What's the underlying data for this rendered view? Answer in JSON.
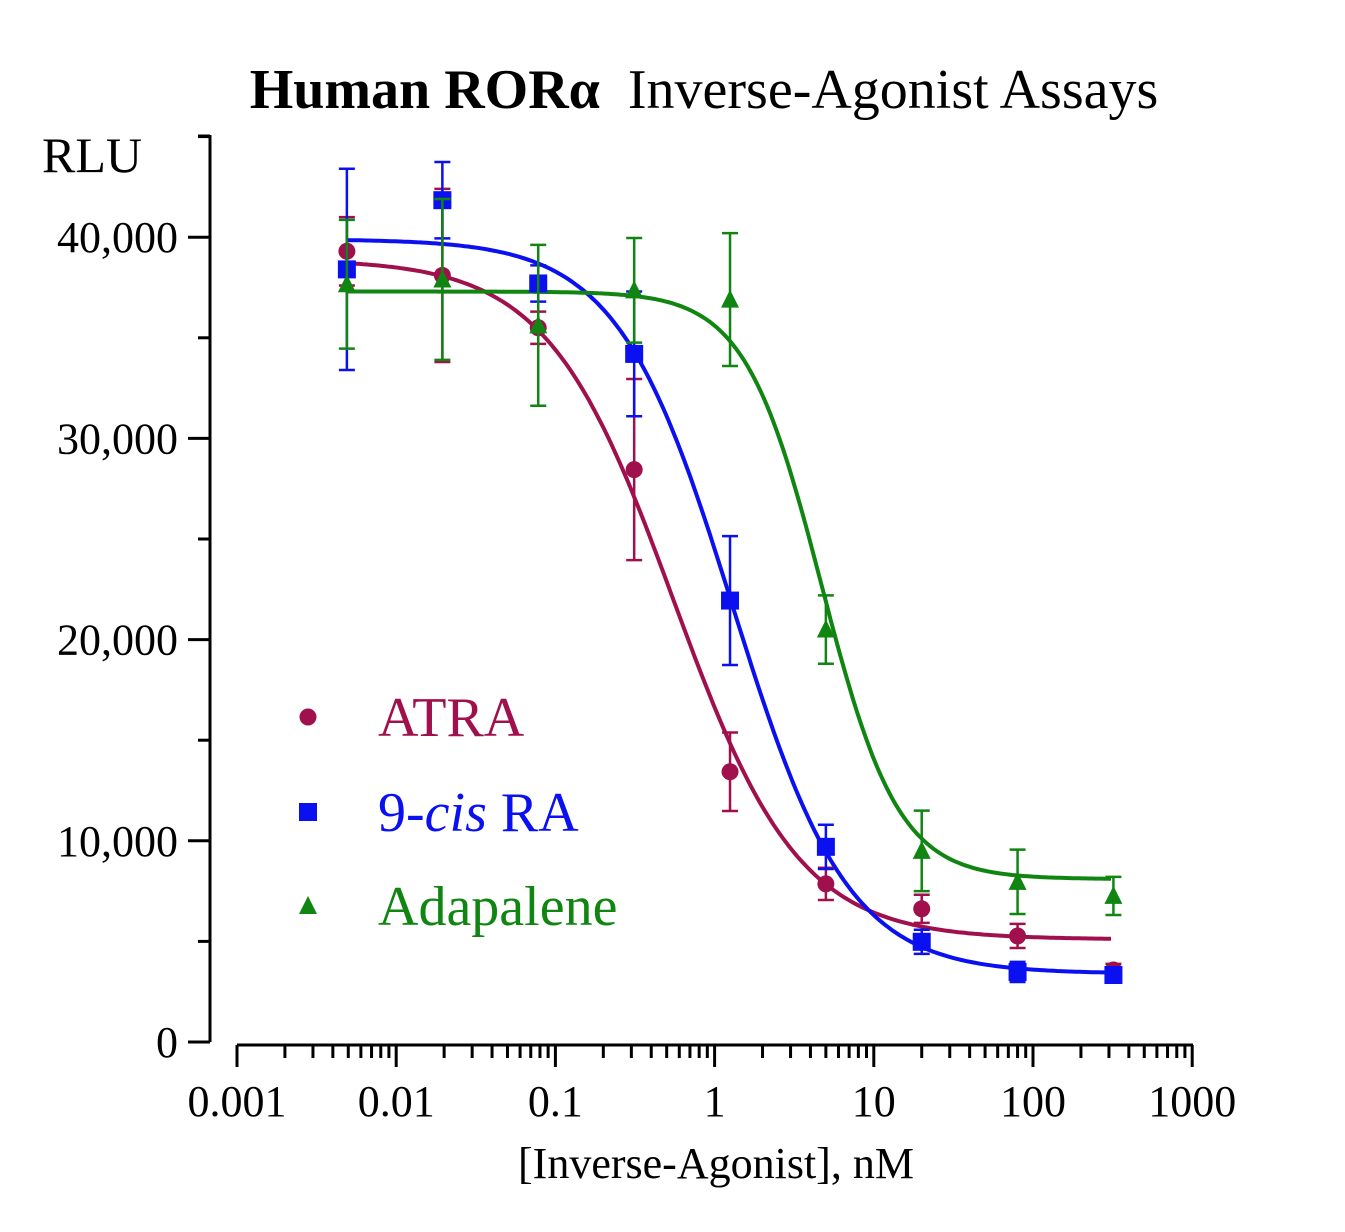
{
  "chart_data": {
    "type": "scatter",
    "title_bold": "Human RORα",
    "title_rest": "Inverse-Agonist Assays",
    "ylabel": "RLU",
    "xlabel": "[Inverse-Agonist], nM",
    "xscale": "log",
    "xlim": [
      0.001,
      1000
    ],
    "ylim": [
      0,
      45000
    ],
    "xticks": [
      0.001,
      0.01,
      0.1,
      1,
      10,
      100,
      1000
    ],
    "xtick_labels": [
      "0.001",
      "0.01",
      "0.1",
      "1",
      "10",
      "100",
      "1000"
    ],
    "yticks": [
      0,
      10000,
      20000,
      30000,
      40000
    ],
    "ytick_labels": [
      "0",
      "10,000",
      "20,000",
      "30,000",
      "40,000"
    ],
    "legend_position": "bottom-left",
    "x": [
      0.0049,
      0.0195,
      0.078,
      0.3125,
      1.25,
      5,
      20,
      80,
      320
    ],
    "series": [
      {
        "name": "ATRA",
        "name_parts": [
          "ATRA"
        ],
        "marker": "circle",
        "color": "#a0104c",
        "values": [
          39300,
          38100,
          35500,
          28450,
          13430,
          7860,
          6620,
          5270,
          3580
        ],
        "errors": [
          1700,
          4300,
          800,
          4500,
          1950,
          800,
          700,
          600,
          300
        ],
        "fit": {
          "top": 38900,
          "bottom": 5100,
          "ic50": 0.55,
          "hill": 1.1
        }
      },
      {
        "name": "9-cis RA",
        "name_parts": [
          "9-",
          "cis",
          " RA"
        ],
        "marker": "square",
        "color": "#0a10f0",
        "values": [
          38400,
          41840,
          37700,
          34200,
          21940,
          9700,
          4980,
          3480,
          3330
        ],
        "errors": [
          5000,
          1900,
          900,
          3100,
          3200,
          1100,
          600,
          500,
          300
        ],
        "fit": {
          "top": 39900,
          "bottom": 3400,
          "ic50": 1.3,
          "hill": 1.2
        }
      },
      {
        "name": "Adapalene",
        "name_parts": [
          "Adapalene"
        ],
        "marker": "triangle",
        "color": "#118511",
        "values": [
          37660,
          37900,
          35620,
          37360,
          36900,
          20500,
          9500,
          7960,
          7260
        ],
        "errors": [
          3200,
          4000,
          4000,
          2600,
          3300,
          1700,
          2000,
          1600,
          950
        ],
        "fit": {
          "top": 37300,
          "bottom": 8100,
          "ic50": 4.7,
          "hill": 1.8
        }
      }
    ]
  }
}
